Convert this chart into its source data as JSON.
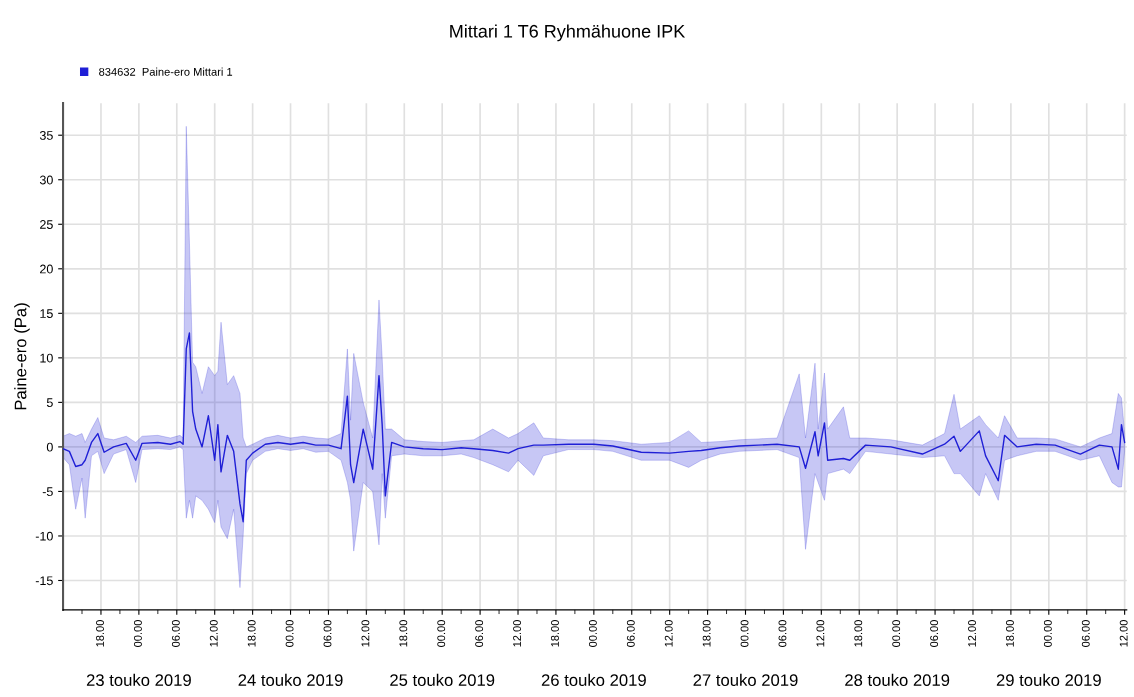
{
  "chart_data": {
    "type": "line",
    "title": "Mittari 1 T6 Ryhmähuone IPK",
    "ylabel": "Paine-ero (Pa)",
    "xlim": [
      "2019-05-22T12:00",
      "2019-05-29T12:20"
    ],
    "xticks": [
      {
        "value": "2019-05-22T18:00",
        "label": "18.00"
      },
      {
        "value": "2019-05-23T00:00",
        "label": "00.00"
      },
      {
        "value": "2019-05-23T06:00",
        "label": "06.00"
      },
      {
        "value": "2019-05-23T12:00",
        "label": "12.00"
      },
      {
        "value": "2019-05-23T18:00",
        "label": "18.00"
      },
      {
        "value": "2019-05-24T00:00",
        "label": "00.00"
      },
      {
        "value": "2019-05-24T06:00",
        "label": "06.00"
      },
      {
        "value": "2019-05-24T12:00",
        "label": "12.00"
      },
      {
        "value": "2019-05-24T18:00",
        "label": "18.00"
      },
      {
        "value": "2019-05-25T00:00",
        "label": "00.00"
      },
      {
        "value": "2019-05-25T06:00",
        "label": "06.00"
      },
      {
        "value": "2019-05-25T12:00",
        "label": "12.00"
      },
      {
        "value": "2019-05-25T18:00",
        "label": "18.00"
      },
      {
        "value": "2019-05-26T00:00",
        "label": "00.00"
      },
      {
        "value": "2019-05-26T06:00",
        "label": "06.00"
      },
      {
        "value": "2019-05-26T12:00",
        "label": "12.00"
      },
      {
        "value": "2019-05-26T18:00",
        "label": "18.00"
      },
      {
        "value": "2019-05-27T00:00",
        "label": "00.00"
      },
      {
        "value": "2019-05-27T06:00",
        "label": "06.00"
      },
      {
        "value": "2019-05-27T12:00",
        "label": "12.00"
      },
      {
        "value": "2019-05-27T18:00",
        "label": "18.00"
      },
      {
        "value": "2019-05-28T00:00",
        "label": "00.00"
      },
      {
        "value": "2019-05-28T06:00",
        "label": "06.00"
      },
      {
        "value": "2019-05-28T12:00",
        "label": "12.00"
      },
      {
        "value": "2019-05-28T18:00",
        "label": "18.00"
      },
      {
        "value": "2019-05-29T00:00",
        "label": "00.00"
      },
      {
        "value": "2019-05-29T06:00",
        "label": "06.00"
      },
      {
        "value": "2019-05-29T12:00",
        "label": "12.00"
      }
    ],
    "x2lim": [
      "2019-05-22T12:00",
      "2019-05-29T12:20"
    ],
    "x2ticks": [
      {
        "value": "2019-05-23T00:00",
        "label": "23 touko 2019"
      },
      {
        "value": "2019-05-24T00:00",
        "label": "24 touko 2019"
      },
      {
        "value": "2019-05-25T00:00",
        "label": "25 touko 2019"
      },
      {
        "value": "2019-05-26T00:00",
        "label": "26 touko 2019"
      },
      {
        "value": "2019-05-27T00:00",
        "label": "27 touko 2019"
      },
      {
        "value": "2019-05-28T00:00",
        "label": "28 touko 2019"
      },
      {
        "value": "2019-05-29T00:00",
        "label": "29 touko 2019"
      }
    ],
    "ylim": [
      -18.3,
      38.6
    ],
    "yticks": [
      -15,
      -10,
      -5,
      0,
      5,
      10,
      15,
      20,
      25,
      30,
      35
    ],
    "grid": true,
    "legend": "top left",
    "series": [
      {
        "name": "834632  Paine-ero Mittari 1",
        "color": "#1f1fd6",
        "x": [
          "2019-05-22T12:00",
          "2019-05-22T13:00",
          "2019-05-22T14:00",
          "2019-05-22T15:00",
          "2019-05-22T15:30",
          "2019-05-22T16:30",
          "2019-05-22T17:30",
          "2019-05-22T18:30",
          "2019-05-22T20:00",
          "2019-05-22T22:00",
          "2019-05-22T23:30",
          "2019-05-23T00:30",
          "2019-05-23T03:00",
          "2019-05-23T05:00",
          "2019-05-23T06:30",
          "2019-05-23T07:00",
          "2019-05-23T07:30",
          "2019-05-23T08:00",
          "2019-05-23T08:30",
          "2019-05-23T09:00",
          "2019-05-23T10:00",
          "2019-05-23T11:00",
          "2019-05-23T12:00",
          "2019-05-23T12:30",
          "2019-05-23T13:00",
          "2019-05-23T14:00",
          "2019-05-23T15:00",
          "2019-05-23T16:00",
          "2019-05-23T16:30",
          "2019-05-23T17:00",
          "2019-05-23T18:00",
          "2019-05-23T20:00",
          "2019-05-23T22:00",
          "2019-05-24T00:00",
          "2019-05-24T02:00",
          "2019-05-24T04:00",
          "2019-05-24T06:00",
          "2019-05-24T08:00",
          "2019-05-24T09:00",
          "2019-05-24T09:30",
          "2019-05-24T10:00",
          "2019-05-24T11:30",
          "2019-05-24T13:00",
          "2019-05-24T14:00",
          "2019-05-24T14:30",
          "2019-05-24T15:00",
          "2019-05-24T16:00",
          "2019-05-24T18:00",
          "2019-05-24T21:00",
          "2019-05-25T00:00",
          "2019-05-25T03:00",
          "2019-05-25T05:00",
          "2019-05-25T08:00",
          "2019-05-25T10:30",
          "2019-05-25T12:00",
          "2019-05-25T14:30",
          "2019-05-25T16:00",
          "2019-05-25T20:00",
          "2019-05-26T00:00",
          "2019-05-26T03:00",
          "2019-05-26T07:30",
          "2019-05-26T12:00",
          "2019-05-26T15:00",
          "2019-05-26T17:00",
          "2019-05-26T20:00",
          "2019-05-26T23:00",
          "2019-05-27T02:00",
          "2019-05-27T05:00",
          "2019-05-27T08:30",
          "2019-05-27T09:30",
          "2019-05-27T11:00",
          "2019-05-27T11:30",
          "2019-05-27T12:30",
          "2019-05-27T13:00",
          "2019-05-27T15:30",
          "2019-05-27T16:30",
          "2019-05-27T19:00",
          "2019-05-27T23:00",
          "2019-05-28T04:00",
          "2019-05-28T07:30",
          "2019-05-28T09:00",
          "2019-05-28T10:00",
          "2019-05-28T13:00",
          "2019-05-28T14:00",
          "2019-05-28T16:00",
          "2019-05-28T17:00",
          "2019-05-28T19:00",
          "2019-05-28T22:00",
          "2019-05-29T01:00",
          "2019-05-29T05:00",
          "2019-05-29T08:00",
          "2019-05-29T10:00",
          "2019-05-29T11:00",
          "2019-05-29T11:30",
          "2019-05-29T12:00"
        ],
        "values": [
          -0.2,
          -0.5,
          -2.2,
          -2.0,
          -1.5,
          0.5,
          1.5,
          -0.6,
          0,
          0.4,
          -1.5,
          0.4,
          0.5,
          0.3,
          0.6,
          0.3,
          11,
          12.8,
          4,
          2,
          0,
          3.5,
          -1.5,
          2.5,
          -2.8,
          1.3,
          -0.5,
          -6.4,
          -8.4,
          -1.5,
          -0.7,
          0.3,
          0.5,
          0.3,
          0.5,
          0.2,
          0.2,
          -0.2,
          5.7,
          -2,
          -4,
          2,
          -2.5,
          8,
          2.5,
          -5.5,
          0.5,
          0,
          -0.2,
          -0.3,
          -0.1,
          -0.2,
          -0.4,
          -0.7,
          -0.2,
          0.2,
          0.2,
          0.3,
          0.3,
          0.1,
          -0.6,
          -0.7,
          -0.5,
          -0.4,
          -0.1,
          0.1,
          0.2,
          0.3,
          0,
          -2.4,
          1.7,
          -1,
          2.7,
          -1.5,
          -1.3,
          -1.5,
          0.2,
          0,
          -0.8,
          0.3,
          1.2,
          -0.5,
          1.8,
          -1,
          -3.8,
          1.3,
          0,
          0.3,
          0.2,
          -0.8,
          0.2,
          0,
          -2.5,
          2.5,
          0.5
        ],
        "lower": [
          -1.2,
          -2,
          -7,
          -3.5,
          -8,
          -1,
          -0.5,
          -3,
          -0.8,
          -0.3,
          -4,
          -0.3,
          -0.2,
          -0.3,
          0,
          -0.3,
          -8,
          -6,
          -8,
          -5.5,
          -6,
          -7,
          -8.5,
          -6,
          -9,
          -10.3,
          -7,
          -15.8,
          -10,
          -3,
          -1.5,
          -0.5,
          -0.2,
          -0.4,
          -0.2,
          -0.6,
          -0.5,
          -1.5,
          -4,
          -6,
          -11.7,
          -4,
          -5,
          -11,
          -3,
          -8,
          -1,
          -0.8,
          -1,
          -1,
          -0.8,
          -1.2,
          -2,
          -2.8,
          -1.5,
          -3.2,
          -1,
          -0.3,
          -0.3,
          -0.5,
          -1.5,
          -1.5,
          -2.3,
          -1.5,
          -0.8,
          -0.5,
          -0.4,
          -0.3,
          -1.2,
          -11.5,
          -3,
          -4,
          -6,
          -3,
          -2.5,
          -3,
          -0.5,
          -0.8,
          -1.2,
          -1,
          -3,
          -3,
          -5.5,
          -3,
          -6,
          -1.5,
          -1,
          -0.5,
          -0.5,
          -1.5,
          -1,
          -4,
          -4.5,
          -4.5,
          -0.5
        ],
        "upper": [
          1.2,
          1.5,
          1.2,
          1.5,
          0.5,
          2,
          3.3,
          1,
          0.8,
          1.2,
          0.5,
          1.2,
          1.3,
          1,
          1.3,
          1,
          36,
          23,
          9.5,
          9,
          6,
          9,
          8,
          8.5,
          14,
          7,
          8,
          6,
          1,
          0,
          0.3,
          1,
          1.3,
          1,
          1.2,
          1,
          0.9,
          1.5,
          11,
          3,
          10.5,
          5,
          1,
          16.5,
          10,
          2,
          2,
          0.8,
          0.6,
          0.5,
          0.7,
          0.8,
          2,
          1,
          1.5,
          2.7,
          1,
          0.8,
          0.8,
          0.7,
          0.3,
          0.5,
          1.8,
          0.5,
          0.6,
          0.8,
          0.9,
          1,
          8.2,
          1,
          9.4,
          2,
          8.3,
          2,
          4.5,
          1,
          1,
          0.8,
          0.2,
          1.5,
          5.9,
          2,
          3.5,
          2.5,
          1,
          3.5,
          1,
          1,
          0.9,
          0,
          1,
          1.5,
          6,
          5.5,
          1.5
        ]
      }
    ]
  }
}
